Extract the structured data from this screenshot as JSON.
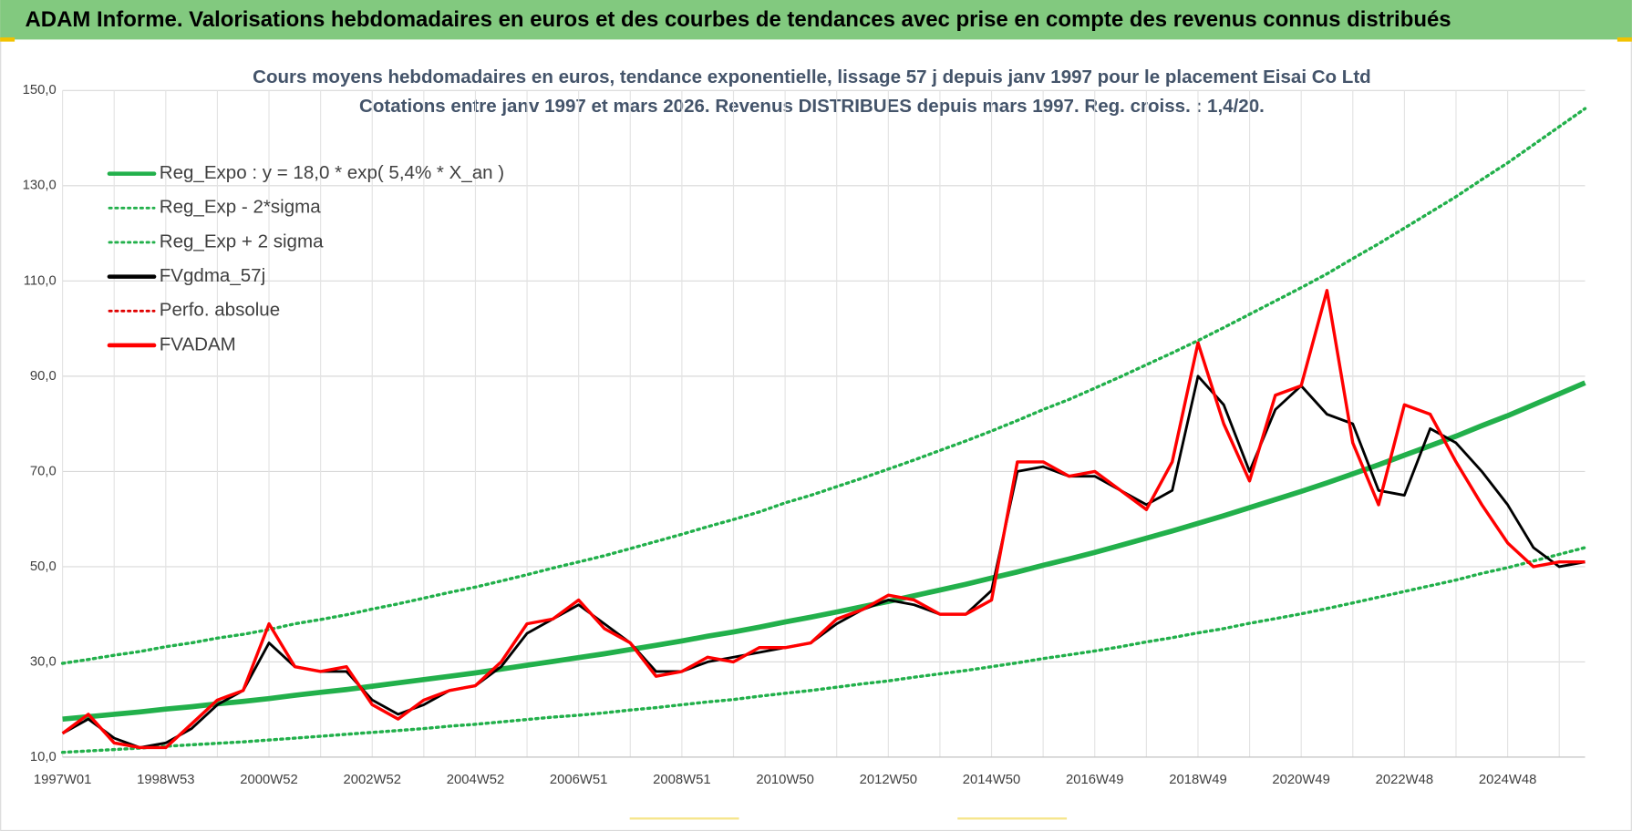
{
  "header": {
    "title": "ADAM Informe. Valorisations hebdomadaires en euros et des courbes de tendances avec prise en compte des revenus connus distribués"
  },
  "chart_data": {
    "type": "line",
    "title": "Cours moyens hebdomadaires en euros, tendance exponentielle, lissage 57 j depuis janv 1997 pour le placement Eisai Co Ltd",
    "subtitle": "Cotations entre janv 1997 et mars 2026. Revenus DISTRIBUES depuis mars 1997. Reg. croiss. : 1,4/20.",
    "categories": [
      "1997W01",
      null,
      null,
      null,
      "1998W53",
      null,
      null,
      null,
      "2000W52",
      null,
      null,
      null,
      "2002W52",
      null,
      null,
      null,
      "2004W52",
      null,
      null,
      null,
      "2006W51",
      null,
      null,
      null,
      "2008W51",
      null,
      null,
      null,
      "2010W50",
      null,
      null,
      null,
      "2012W50",
      null,
      null,
      null,
      "2014W50",
      null,
      null,
      null,
      "2016W49",
      null,
      null,
      null,
      "2018W49",
      null,
      null,
      null,
      "2020W49",
      null,
      null,
      null,
      "2022W48",
      null,
      null,
      null,
      "2024W48",
      null,
      null,
      null
    ],
    "ylim": [
      10,
      150
    ],
    "yticks": [
      {
        "value": 10,
        "label": "10,0"
      },
      {
        "value": 30,
        "label": "30,0"
      },
      {
        "value": 50,
        "label": "50,0"
      },
      {
        "value": 70,
        "label": "70,0"
      },
      {
        "value": 90,
        "label": "90,0"
      },
      {
        "value": 110,
        "label": "110,0"
      },
      {
        "value": 130,
        "label": "130,0"
      },
      {
        "value": 150,
        "label": "150,0"
      }
    ],
    "grid": true,
    "legend": "top-left",
    "series": [
      {
        "name": "Reg_Expo : y = 18,0 * exp( 5,4% *  X_an )",
        "color": "#22b04b",
        "width": 5,
        "dash": false,
        "values": [
          18.0,
          18.5,
          19.0,
          19.5,
          20.1,
          20.6,
          21.2,
          21.7,
          22.3,
          23.0,
          23.6,
          24.2,
          24.9,
          25.6,
          26.3,
          27.0,
          27.7,
          28.5,
          29.3,
          30.1,
          30.9,
          31.7,
          32.6,
          33.5,
          34.4,
          35.4,
          36.3,
          37.3,
          38.4,
          39.4,
          40.5,
          41.6,
          42.7,
          43.9,
          45.1,
          46.3,
          47.6,
          48.9,
          50.3,
          51.6,
          53.0,
          54.5,
          56.0,
          57.5,
          59.1,
          60.7,
          62.4,
          64.1,
          65.8,
          67.6,
          69.5,
          71.4,
          73.4,
          75.4,
          77.4,
          79.6,
          81.7,
          84.0,
          86.3,
          88.6
        ]
      },
      {
        "name": "Reg_Exp - 2*sigma",
        "color": "#22b04b",
        "width": 3,
        "dash": true,
        "values": [
          11.0,
          11.3,
          11.6,
          11.9,
          12.3,
          12.6,
          12.9,
          13.2,
          13.6,
          14.0,
          14.4,
          14.8,
          15.2,
          15.6,
          16.0,
          16.5,
          16.9,
          17.4,
          17.9,
          18.4,
          18.8,
          19.3,
          19.9,
          20.4,
          21.0,
          21.6,
          22.1,
          22.8,
          23.4,
          24.0,
          24.7,
          25.4,
          26.0,
          26.8,
          27.5,
          28.2,
          29.0,
          29.8,
          30.7,
          31.5,
          32.3,
          33.2,
          34.2,
          35.1,
          36.1,
          37.0,
          38.1,
          39.1,
          40.1,
          41.2,
          42.4,
          43.6,
          44.8,
          46.0,
          47.2,
          48.6,
          49.8,
          51.2,
          52.6,
          54.0
        ]
      },
      {
        "name": "Reg_Exp + 2 sigma",
        "color": "#22b04b",
        "width": 3,
        "dash": true,
        "values": [
          29.7,
          30.5,
          31.4,
          32.2,
          33.2,
          34.0,
          35.0,
          35.8,
          36.8,
          38.0,
          38.9,
          39.9,
          41.1,
          42.2,
          43.4,
          44.6,
          45.7,
          47.0,
          48.3,
          49.7,
          51.0,
          52.3,
          53.8,
          55.3,
          56.8,
          58.4,
          59.9,
          61.5,
          63.4,
          65.0,
          66.8,
          68.6,
          70.5,
          72.4,
          74.4,
          76.4,
          78.5,
          80.7,
          83.0,
          85.1,
          87.5,
          89.9,
          92.4,
          94.9,
          97.5,
          100.2,
          103.0,
          105.8,
          108.6,
          111.5,
          114.7,
          117.8,
          121.1,
          124.4,
          127.7,
          131.3,
          134.8,
          138.6,
          142.4,
          146.2
        ]
      },
      {
        "name": "FVgdma_57j",
        "color": "#000000",
        "width": 2.5,
        "dash": false,
        "values": [
          15,
          18,
          14,
          12,
          13,
          16,
          21,
          24,
          34,
          29,
          28,
          28,
          22,
          19,
          21,
          24,
          25,
          29,
          36,
          39,
          42,
          38,
          34,
          28,
          28,
          30,
          31,
          32,
          33,
          34,
          38,
          41,
          43,
          42,
          40,
          40,
          45,
          70,
          71,
          69,
          69,
          66,
          63,
          66,
          90,
          84,
          70,
          83,
          88,
          82,
          80,
          66,
          65,
          79,
          76,
          70,
          63,
          54,
          50,
          51
        ]
      },
      {
        "name": "Perfo. absolue",
        "color": "#e00000",
        "width": 2,
        "dash": true,
        "values": [
          null,
          null,
          null,
          null,
          null,
          null,
          null,
          null,
          null,
          null,
          null,
          null,
          null,
          null,
          null,
          null,
          null,
          null,
          null,
          null,
          null,
          null,
          null,
          null,
          null,
          null,
          null,
          null,
          null,
          null,
          null,
          null,
          null,
          null,
          null,
          null,
          null,
          null,
          null,
          null,
          null,
          null,
          null,
          null,
          null,
          null,
          null,
          null,
          null,
          null,
          null,
          null,
          null,
          null,
          null,
          null,
          null,
          null,
          null,
          null
        ]
      },
      {
        "name": "FVADAM",
        "color": "#ff0000",
        "width": 3,
        "dash": false,
        "values": [
          15,
          19,
          13,
          12,
          12,
          17,
          22,
          24,
          38,
          29,
          28,
          29,
          21,
          18,
          22,
          24,
          25,
          30,
          38,
          39,
          43,
          37,
          34,
          27,
          28,
          31,
          30,
          33,
          33,
          34,
          39,
          41,
          44,
          43,
          40,
          40,
          43,
          72,
          72,
          69,
          70,
          66,
          62,
          72,
          97,
          80,
          68,
          86,
          88,
          108,
          76,
          63,
          84,
          82,
          72,
          63,
          55,
          50,
          51,
          51
        ]
      }
    ]
  }
}
